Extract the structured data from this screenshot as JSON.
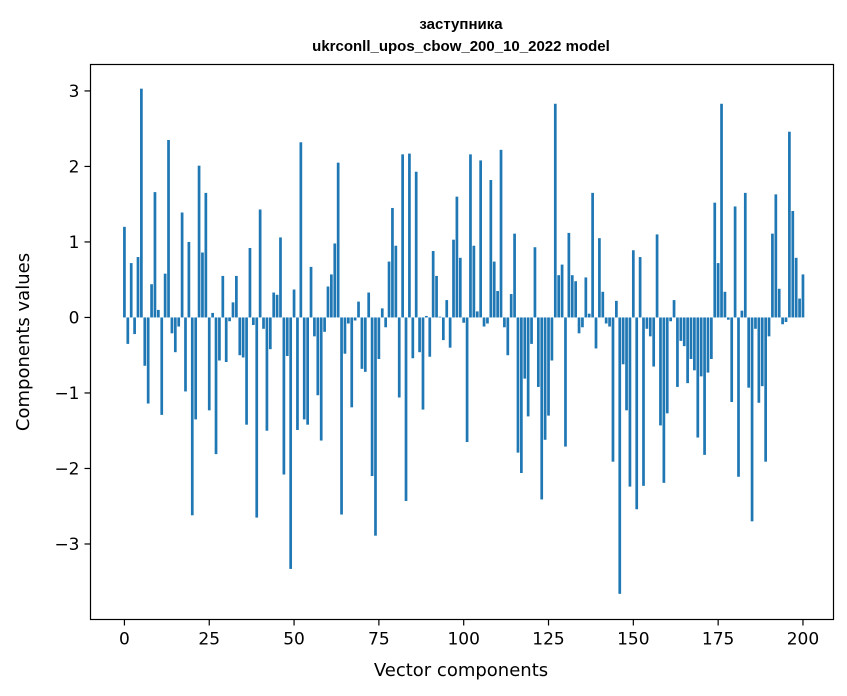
{
  "chart_data": {
    "type": "bar",
    "title_line1": "заступника",
    "title_line2": "ukrconll_upos_cbow_200_10_2022 model",
    "xlabel": "Vector components",
    "ylabel": "Components values",
    "xlim": [
      -10,
      209
    ],
    "ylim": [
      -4.0,
      3.35
    ],
    "xticks": [
      0,
      25,
      50,
      75,
      100,
      125,
      150,
      175,
      200
    ],
    "yticks": [
      -3,
      -2,
      -1,
      0,
      1,
      2,
      3
    ],
    "ytick_labels": [
      "−3",
      "−2",
      "−1",
      "0",
      "1",
      "2",
      "3"
    ],
    "bar_color": "#1f77b4",
    "grid": false,
    "values": [
      1.2,
      -0.35,
      0.72,
      -0.22,
      0.8,
      3.03,
      -0.64,
      -1.14,
      0.44,
      1.66,
      0.1,
      -1.29,
      0.58,
      2.35,
      -0.21,
      -0.46,
      -0.12,
      1.39,
      -0.98,
      1.0,
      -2.62,
      -1.35,
      2.01,
      0.86,
      1.65,
      -1.23,
      0.06,
      -1.81,
      -0.57,
      0.55,
      -0.59,
      -0.05,
      0.2,
      0.55,
      -0.5,
      -0.53,
      -1.42,
      0.92,
      -0.1,
      -2.65,
      1.43,
      -0.15,
      -1.5,
      -0.42,
      0.33,
      0.3,
      1.06,
      -2.08,
      -0.51,
      -3.33,
      0.37,
      -1.49,
      2.32,
      -1.35,
      -1.42,
      0.67,
      -0.25,
      -1.03,
      -1.63,
      -0.19,
      0.41,
      0.57,
      0.98,
      2.05,
      -2.61,
      -0.48,
      -0.08,
      -1.19,
      -0.04,
      0.21,
      -0.68,
      -0.72,
      0.33,
      -2.1,
      -2.89,
      -0.55,
      0.12,
      -0.13,
      0.74,
      1.45,
      0.95,
      -1.06,
      2.16,
      -2.43,
      2.17,
      -0.54,
      1.93,
      -0.46,
      -1.22,
      0.02,
      -0.52,
      0.88,
      0.55,
      0.01,
      -0.3,
      0.23,
      -0.4,
      1.03,
      1.6,
      0.79,
      -0.07,
      -1.65,
      2.16,
      0.95,
      0.08,
      2.08,
      -0.12,
      -0.08,
      1.82,
      0.74,
      0.35,
      2.22,
      -0.13,
      -0.5,
      0.31,
      1.11,
      -1.79,
      -2.06,
      -0.81,
      -1.31,
      -0.35,
      0.93,
      -0.92,
      -2.41,
      -1.62,
      -1.3,
      -0.57,
      2.83,
      0.56,
      0.7,
      -1.71,
      1.12,
      0.56,
      0.48,
      -0.21,
      -0.13,
      0.53,
      0.05,
      1.65,
      -0.41,
      1.05,
      0.34,
      -0.08,
      -0.12,
      -1.91,
      0.22,
      -3.66,
      -0.62,
      -1.23,
      -2.24,
      0.89,
      -2.54,
      0.8,
      -2.23,
      -0.15,
      -0.25,
      -0.65,
      1.1,
      -1.43,
      -2.19,
      -1.27,
      -0.05,
      0.23,
      -0.92,
      -0.31,
      -0.38,
      -0.87,
      -0.55,
      -0.7,
      -1.59,
      -0.78,
      -1.82,
      -0.73,
      -0.55,
      1.52,
      0.72,
      2.83,
      0.34,
      -0.03,
      -1.12,
      1.47,
      -2.11,
      0.09,
      1.65,
      -0.93,
      -2.7,
      -0.15,
      -1.13,
      -0.91,
      -1.91,
      -0.25,
      1.11,
      1.63,
      0.38,
      -0.09,
      -0.06,
      2.46,
      1.41,
      0.79,
      0.25,
      0.57
    ]
  }
}
